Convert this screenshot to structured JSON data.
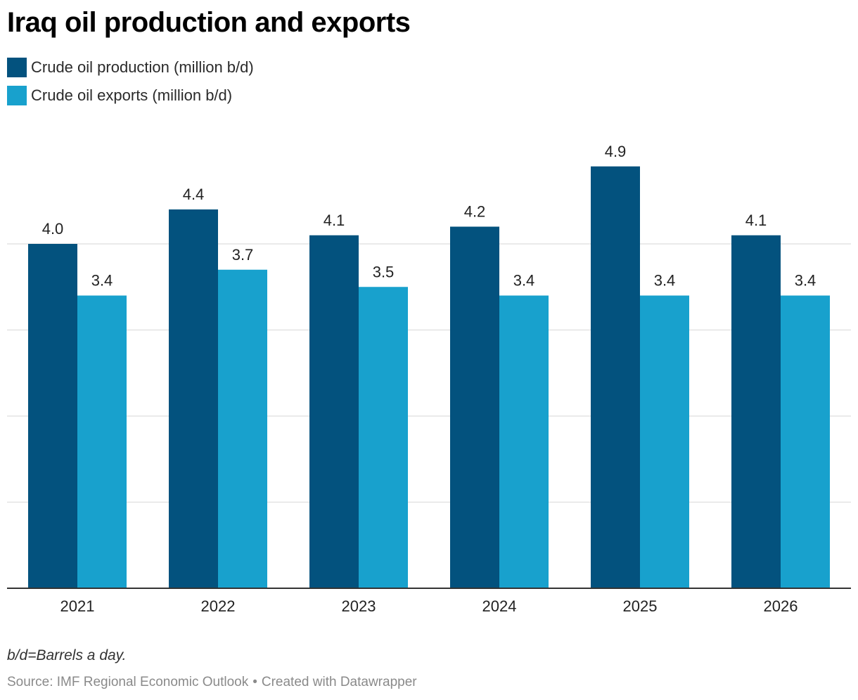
{
  "header": {
    "title": "Iraq oil production and exports"
  },
  "footer": {
    "note": "b/d=Barrels a day.",
    "source": "Source: IMF Regional Economic Outlook",
    "separator": "•",
    "credit": "Created with Datawrapper"
  },
  "chart_data": {
    "type": "bar",
    "title": "Iraq oil production and exports",
    "xlabel": "",
    "ylabel": "",
    "ylim": [
      0,
      5.5
    ],
    "gridlines": [
      1,
      2,
      3,
      4
    ],
    "grid": true,
    "legend_position": "top-left",
    "categories": [
      "2021",
      "2022",
      "2023",
      "2024",
      "2025",
      "2026"
    ],
    "series": [
      {
        "name": "Crude oil production (million b/d)",
        "color": "#03527e",
        "values": [
          4.0,
          4.4,
          4.1,
          4.2,
          4.9,
          4.1
        ],
        "labels": [
          "4.0",
          "4.4",
          "4.1",
          "4.2",
          "4.9",
          "4.1"
        ]
      },
      {
        "name": "Crude oil exports (million b/d)",
        "color": "#18a1cd",
        "values": [
          3.4,
          3.7,
          3.5,
          3.4,
          3.4,
          3.4
        ],
        "labels": [
          "3.4",
          "3.7",
          "3.5",
          "3.4",
          "3.4",
          "3.4"
        ]
      }
    ]
  }
}
